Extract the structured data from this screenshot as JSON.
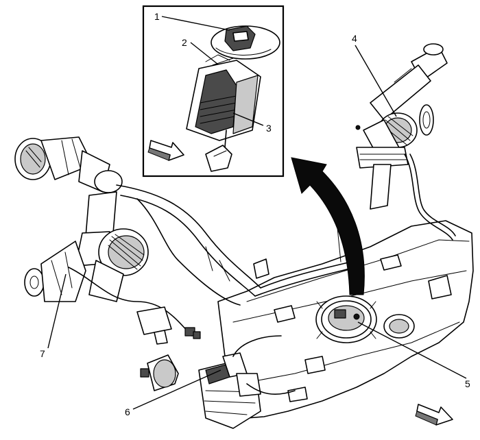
{
  "callouts": [
    {
      "id": "1",
      "label": "1"
    },
    {
      "id": "2",
      "label": "2"
    },
    {
      "id": "3",
      "label": "3"
    },
    {
      "id": "4",
      "label": "4"
    },
    {
      "id": "5",
      "label": "5"
    },
    {
      "id": "6",
      "label": "6"
    },
    {
      "id": "7",
      "label": "7"
    }
  ],
  "colors": {
    "line": "#000000",
    "shade": "#c9c9c9",
    "dark": "#4a4a4a",
    "background": "#ffffff"
  },
  "icons": [
    "forward-direction-arrow-icon",
    "removal-direction-arrow-icon"
  ]
}
